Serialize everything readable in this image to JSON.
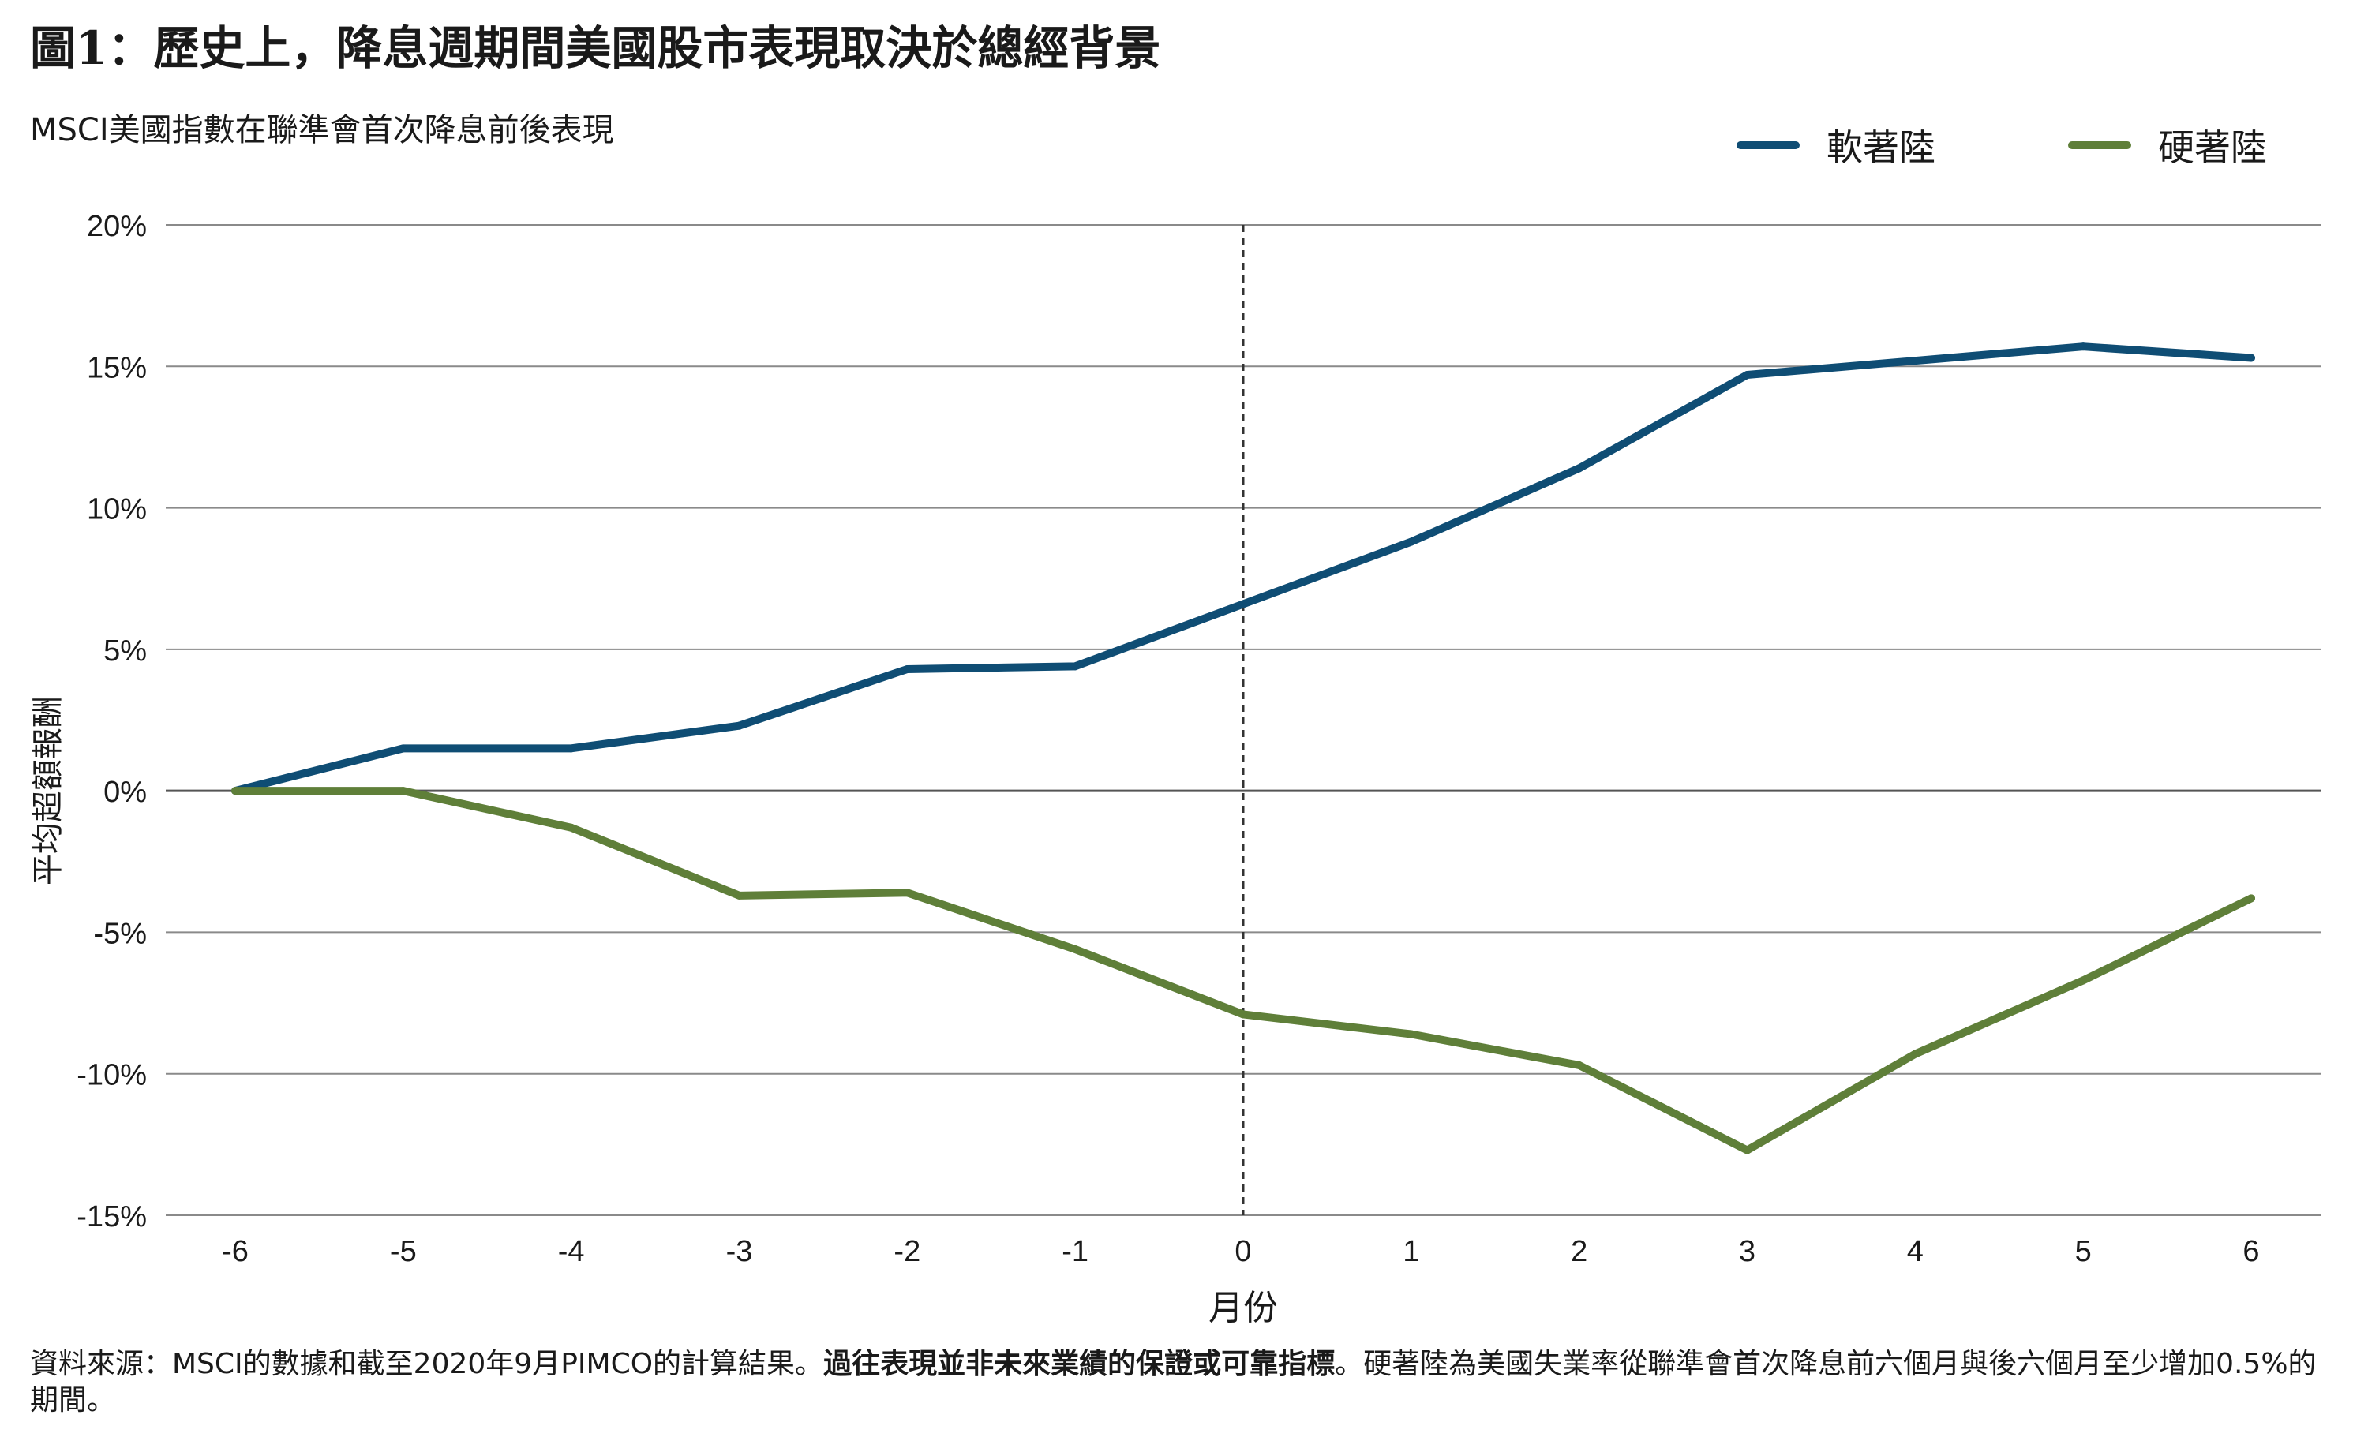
{
  "header": {
    "title": "圖1：歷史上，降息週期間美國股市表現取決於總經背景",
    "subtitle": "MSCI美國指數在聯準會首次降息前後表現"
  },
  "footnote": {
    "part1": "資料來源：MSCI的數據和截至2020年9月PIMCO的計算結果。",
    "bold": "過往表現並非未來業績的保證或可靠指標",
    "part2": "。硬著陸為美國失業率從聯準會首次降息前六個月與後六個月至少增加0.5%的期間。"
  },
  "chart_data": {
    "type": "line",
    "x": [
      -6,
      -5,
      -4,
      -3,
      -2,
      -1,
      0,
      1,
      2,
      3,
      4,
      5,
      6
    ],
    "xlabel": "月份",
    "ylabel": "平均超額報酬",
    "ylim": [
      -15,
      20
    ],
    "yticks": [
      -15,
      -10,
      -5,
      0,
      5,
      10,
      15,
      20
    ],
    "ytick_labels": [
      "-15%",
      "-10%",
      "-5%",
      "0%",
      "5%",
      "10%",
      "15%",
      "20%"
    ],
    "xtick_labels": [
      "-6",
      "-5",
      "-4",
      "-3",
      "-2",
      "-1",
      "0",
      "1",
      "2",
      "3",
      "4",
      "5",
      "6"
    ],
    "grid": true,
    "legend_position": "top-right",
    "vertical_marker_x": 0,
    "series": [
      {
        "name": "軟著陸",
        "color": "#0f4d74",
        "values": [
          0.0,
          1.5,
          1.5,
          2.3,
          4.3,
          4.4,
          6.6,
          8.8,
          11.4,
          14.7,
          15.2,
          15.7,
          15.3
        ]
      },
      {
        "name": "硬著陸",
        "color": "#5f7f39",
        "values": [
          0.0,
          0.0,
          -1.3,
          -3.7,
          -3.6,
          -5.6,
          -7.9,
          -8.6,
          -9.7,
          -12.7,
          -9.3,
          -6.7,
          -3.8
        ]
      }
    ]
  }
}
